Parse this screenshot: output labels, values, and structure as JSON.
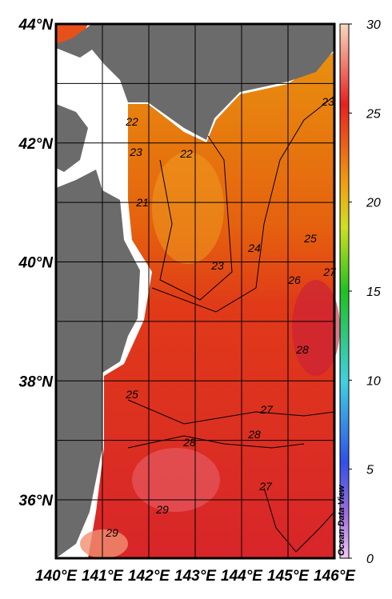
{
  "map": {
    "lat_labels": [
      "44°N",
      "42°N",
      "40°N",
      "38°N",
      "36°N"
    ],
    "lon_labels": [
      "140°E",
      "141°E",
      "142°E",
      "143°E",
      "144°E",
      "145°E",
      "146°E"
    ],
    "colorbar": {
      "lim": [
        0,
        30
      ],
      "ticks": [
        0,
        5,
        10,
        15,
        20,
        25,
        30
      ]
    },
    "contour_labels": [
      "22",
      "23",
      "23",
      "22",
      "21",
      "23",
      "24",
      "25",
      "26",
      "27",
      "28",
      "25",
      "27",
      "28",
      "28",
      "27",
      "29",
      "29"
    ],
    "watermark": "Ocean Data View"
  }
}
